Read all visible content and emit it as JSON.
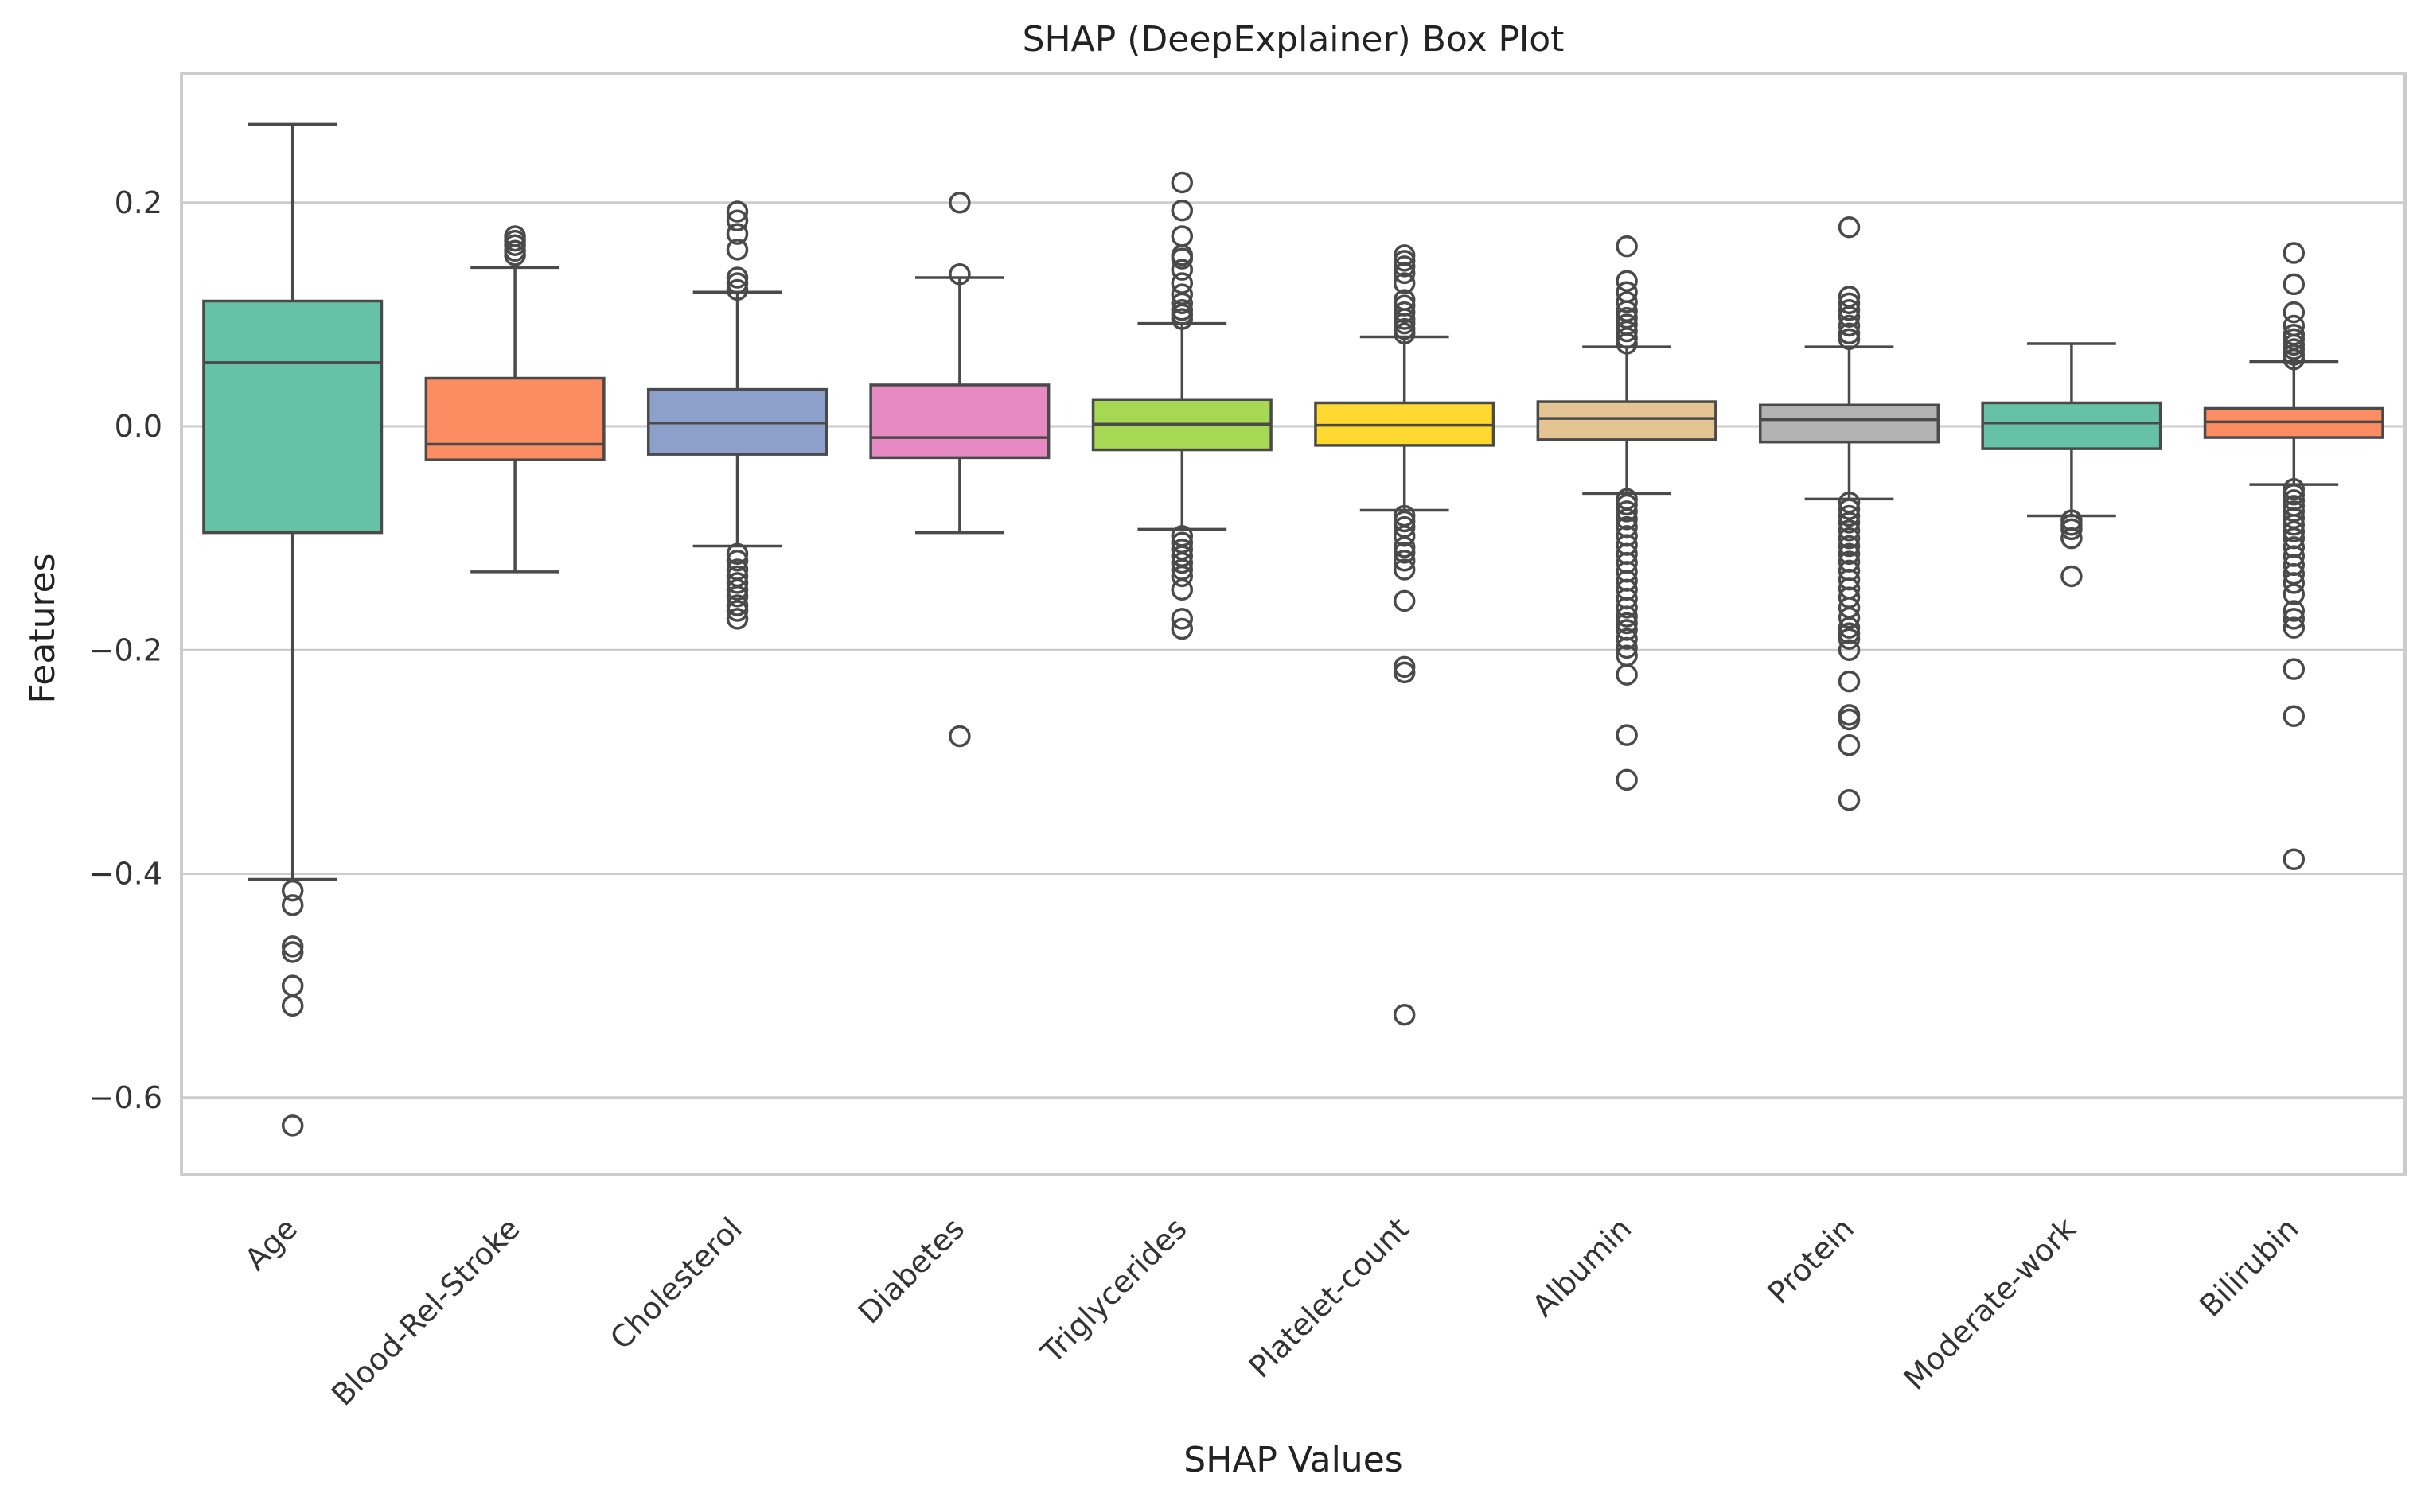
{
  "chart_data": {
    "type": "box",
    "title": "SHAP (DeepExplainer) Box Plot",
    "xlabel": "SHAP Values",
    "ylabel": "Features",
    "ylim": [
      -0.67,
      0.32
    ],
    "yticks": [
      0.2,
      0.0,
      -0.2,
      -0.4,
      -0.6
    ],
    "ytick_labels": [
      "0.2",
      "0.0",
      "−0.2",
      "−0.4",
      "−0.6"
    ],
    "grid": true,
    "categories": [
      "Age",
      "Blood-Rel-Stroke",
      "Cholesterol",
      "Diabetes",
      "Triglycerides",
      "Platelet-count",
      "Albumin",
      "Protein",
      "Moderate-work",
      "Bilirubin"
    ],
    "series": [
      {
        "category": "Age",
        "color": "#66c2a5",
        "whisker_high": 0.27,
        "q3": 0.112,
        "median": 0.057,
        "q1": -0.095,
        "whisker_low": -0.405,
        "fliers": [
          -0.415,
          -0.428,
          -0.465,
          -0.47,
          -0.5,
          -0.518,
          -0.625
        ]
      },
      {
        "category": "Blood-Rel-Stroke",
        "color": "#fc8d62",
        "whisker_high": 0.142,
        "q3": 0.043,
        "median": -0.016,
        "q1": -0.03,
        "whisker_low": -0.13,
        "fliers": [
          0.153,
          0.157,
          0.162,
          0.166,
          0.17
        ]
      },
      {
        "category": "Cholesterol",
        "color": "#8da0cb",
        "whisker_high": 0.12,
        "q3": 0.033,
        "median": 0.003,
        "q1": -0.025,
        "whisker_low": -0.107,
        "fliers": [
          0.122,
          0.128,
          0.133,
          0.158,
          0.172,
          0.184,
          0.192,
          -0.114,
          -0.12,
          -0.128,
          -0.134,
          -0.14,
          -0.146,
          -0.152,
          -0.16,
          -0.165,
          -0.172
        ]
      },
      {
        "category": "Diabetes",
        "color": "#e78ac3",
        "whisker_high": 0.133,
        "q3": 0.037,
        "median": -0.01,
        "q1": -0.028,
        "whisker_low": -0.095,
        "fliers": [
          0.2,
          0.136,
          -0.277
        ]
      },
      {
        "category": "Triglycerides",
        "color": "#a6d854",
        "whisker_high": 0.092,
        "q3": 0.024,
        "median": 0.002,
        "q1": -0.021,
        "whisker_low": -0.092,
        "fliers": [
          0.096,
          0.1,
          0.104,
          0.11,
          0.118,
          0.128,
          0.14,
          0.15,
          0.153,
          0.17,
          0.193,
          0.218,
          -0.098,
          -0.104,
          -0.11,
          -0.116,
          -0.122,
          -0.128,
          -0.134,
          -0.146,
          -0.172,
          -0.181
        ]
      },
      {
        "category": "Platelet-count",
        "color": "#ffd92f",
        "whisker_high": 0.08,
        "q3": 0.021,
        "median": 0.001,
        "q1": -0.017,
        "whisker_low": -0.075,
        "fliers": [
          0.083,
          0.087,
          0.092,
          0.096,
          0.102,
          0.108,
          0.113,
          0.128,
          0.137,
          0.143,
          0.148,
          0.153,
          -0.08,
          -0.085,
          -0.09,
          -0.098,
          -0.108,
          -0.113,
          -0.12,
          -0.128,
          -0.156,
          -0.215,
          -0.22,
          -0.526
        ]
      },
      {
        "category": "Albumin",
        "color": "#e5c494",
        "whisker_high": 0.071,
        "q3": 0.022,
        "median": 0.007,
        "q1": -0.012,
        "whisker_low": -0.06,
        "fliers": [
          0.074,
          0.079,
          0.085,
          0.091,
          0.097,
          0.103,
          0.111,
          0.12,
          0.13,
          0.161,
          -0.065,
          -0.07,
          -0.076,
          -0.083,
          -0.09,
          -0.098,
          -0.106,
          -0.114,
          -0.122,
          -0.13,
          -0.138,
          -0.146,
          -0.154,
          -0.162,
          -0.17,
          -0.176,
          -0.182,
          -0.19,
          -0.198,
          -0.205,
          -0.222,
          -0.276,
          -0.316
        ]
      },
      {
        "category": "Protein",
        "color": "#b3b3b3",
        "whisker_high": 0.071,
        "q3": 0.019,
        "median": 0.006,
        "q1": -0.014,
        "whisker_low": -0.065,
        "fliers": [
          0.078,
          0.083,
          0.09,
          0.098,
          0.104,
          0.11,
          0.116,
          0.178,
          -0.068,
          -0.074,
          -0.08,
          -0.086,
          -0.093,
          -0.1,
          -0.107,
          -0.114,
          -0.121,
          -0.129,
          -0.137,
          -0.145,
          -0.153,
          -0.162,
          -0.171,
          -0.18,
          -0.185,
          -0.19,
          -0.2,
          -0.228,
          -0.258,
          -0.262,
          -0.285,
          -0.334
        ]
      },
      {
        "category": "Moderate-work",
        "color": "#66c2a5",
        "whisker_high": 0.074,
        "q3": 0.021,
        "median": 0.003,
        "q1": -0.02,
        "whisker_low": -0.08,
        "fliers": [
          -0.084,
          -0.088,
          -0.092,
          -0.1,
          -0.134
        ]
      },
      {
        "category": "Bilirubin",
        "color": "#fc8d62",
        "whisker_high": 0.058,
        "q3": 0.016,
        "median": 0.004,
        "q1": -0.01,
        "whisker_low": -0.052,
        "fliers": [
          0.06,
          0.064,
          0.069,
          0.073,
          0.078,
          0.082,
          0.09,
          0.102,
          0.127,
          0.155,
          -0.056,
          -0.061,
          -0.066,
          -0.071,
          -0.076,
          -0.082,
          -0.088,
          -0.094,
          -0.1,
          -0.108,
          -0.116,
          -0.124,
          -0.132,
          -0.14,
          -0.15,
          -0.165,
          -0.172,
          -0.18,
          -0.217,
          -0.259,
          -0.387
        ]
      }
    ]
  }
}
